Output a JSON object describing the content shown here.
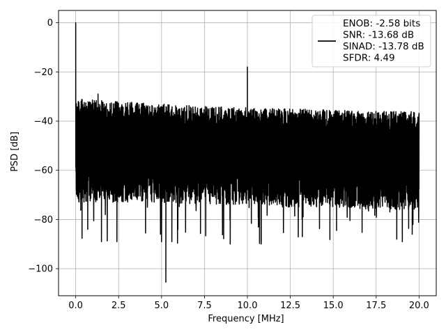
{
  "chart_data": {
    "type": "line",
    "title": "",
    "xlabel": "Frequency [MHz]",
    "ylabel": "PSD [dB]",
    "xlim": [
      -1,
      21
    ],
    "ylim": [
      -111,
      5
    ],
    "x_ticks": [
      0.0,
      2.5,
      5.0,
      7.5,
      10.0,
      12.5,
      15.0,
      17.5,
      20.0
    ],
    "x_tick_labels": [
      "0.0",
      "2.5",
      "5.0",
      "7.5",
      "10.0",
      "12.5",
      "15.0",
      "17.5",
      "20.0"
    ],
    "y_ticks": [
      0,
      -20,
      -40,
      -60,
      -80,
      -100
    ],
    "y_tick_labels": [
      "0",
      "−20",
      "−40",
      "−60",
      "−80",
      "−100"
    ],
    "grid": true,
    "legend_placement": "top-right",
    "series": [
      {
        "name": "ENOB: -2.58 bits\nSNR: -13.68 dB\nSINAD: -13.78 dB\nSFDR: 4.49",
        "color": "#000000",
        "x_range": [
          0,
          20
        ],
        "noise_envelope": {
          "x": [
            0.0,
            2.5,
            5.0,
            7.5,
            10.0,
            12.5,
            15.0,
            17.5,
            20.0
          ],
          "upper": [
            -31,
            -32,
            -33,
            -34,
            -34.5,
            -35,
            -35.5,
            -36,
            -36
          ],
          "lower": [
            -73,
            -73,
            -73,
            -74,
            -74,
            -75,
            -75,
            -76,
            -76
          ],
          "occasional_min": -90
        },
        "peaks": [
          {
            "x": 0.0,
            "y": 0
          },
          {
            "x": 10.0,
            "y": -18
          },
          {
            "x": 1.3,
            "y": -29
          }
        ],
        "dips": [
          {
            "x": 0.7,
            "y": -84
          },
          {
            "x": 1.5,
            "y": -89
          },
          {
            "x": 2.4,
            "y": -89
          },
          {
            "x": 5.0,
            "y": -89
          },
          {
            "x": 5.25,
            "y": -105.5
          },
          {
            "x": 5.6,
            "y": -89
          },
          {
            "x": 9.0,
            "y": -90
          },
          {
            "x": 10.8,
            "y": -90
          },
          {
            "x": 13.2,
            "y": -87
          },
          {
            "x": 18.7,
            "y": -88
          },
          {
            "x": 19.6,
            "y": -86
          }
        ]
      }
    ]
  }
}
